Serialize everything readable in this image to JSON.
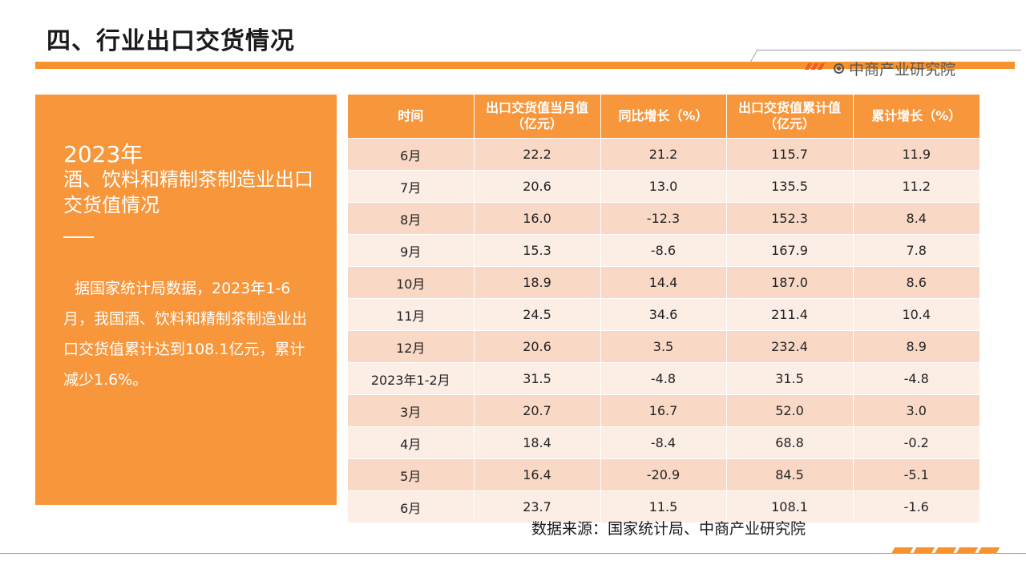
{
  "header": {
    "title": "四、行业出口交货情况",
    "brand": "中商产业研究院"
  },
  "left_panel": {
    "year": "2023年",
    "heading": "酒、饮料和精制茶制造业出口交货值情况",
    "body": "据国家统计局数据，2023年1-6月，我国酒、饮料和精制茶制造业出口交货值累计达到108.1亿元，累计减少1.6%。"
  },
  "table": {
    "headers": [
      "时间",
      "出口交货值当月值（亿元）",
      "同比增长（%）",
      "出口交货值累计值（亿元）",
      "累计增长（%）"
    ],
    "rows": [
      [
        "6月",
        "22.2",
        "21.2",
        "115.7",
        "11.9"
      ],
      [
        "7月",
        "20.6",
        "13.0",
        "135.5",
        "11.2"
      ],
      [
        "8月",
        "16.0",
        "-12.3",
        "152.3",
        "8.4"
      ],
      [
        "9月",
        "15.3",
        "-8.6",
        "167.9",
        "7.8"
      ],
      [
        "10月",
        "18.9",
        "14.4",
        "187.0",
        "8.6"
      ],
      [
        "11月",
        "24.5",
        "34.6",
        "211.4",
        "10.4"
      ],
      [
        "12月",
        "20.6",
        "3.5",
        "232.4",
        "8.9"
      ],
      [
        "2023年1-2月",
        "31.5",
        "-4.8",
        "31.5",
        "-4.8"
      ],
      [
        "3月",
        "20.7",
        "16.7",
        "52.0",
        "3.0"
      ],
      [
        "4月",
        "18.4",
        "-8.4",
        "68.8",
        "-0.2"
      ],
      [
        "5月",
        "16.4",
        "-20.9",
        "84.5",
        "-5.1"
      ],
      [
        "6月",
        "23.7",
        "11.5",
        "108.1",
        "-1.6"
      ]
    ]
  },
  "source": "数据来源：国家统计局、中商产业研究院",
  "colors": {
    "accent": "#f7963b",
    "row_dark": "#f9d9c5",
    "row_light": "#fcede5"
  }
}
